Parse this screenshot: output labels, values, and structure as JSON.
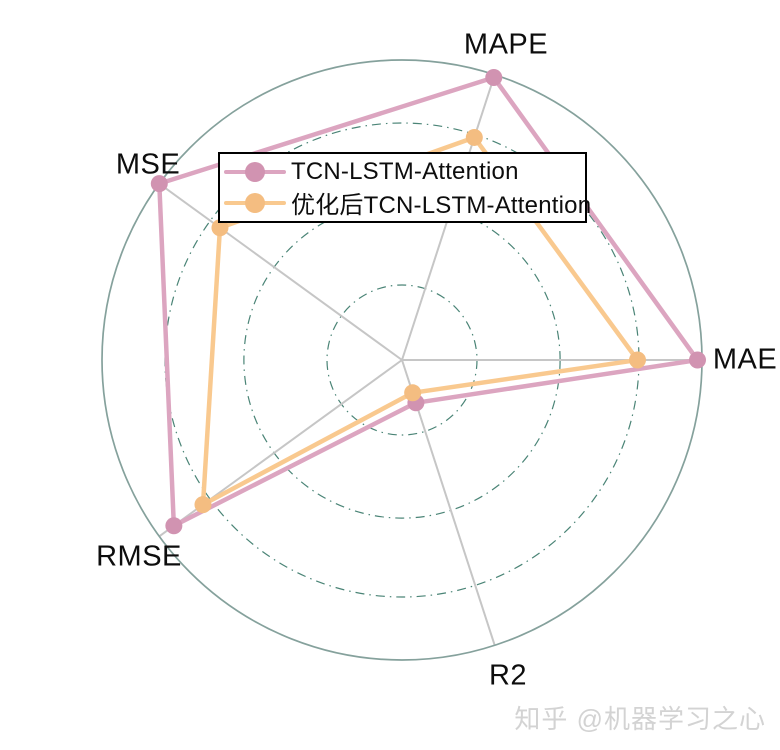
{
  "watermark": {
    "text": "知乎 @机器学习之心"
  },
  "chart_data": {
    "type": "radar",
    "title": "",
    "axes": [
      {
        "label": "MAPE",
        "angle_deg": 72
      },
      {
        "label": "MAE",
        "angle_deg": 0
      },
      {
        "label": "R2",
        "angle_deg": -72
      },
      {
        "label": "RMSE",
        "angle_deg": -144
      },
      {
        "label": "MSE",
        "angle_deg": 144
      }
    ],
    "r_max": 1.0,
    "grid": {
      "ring_fractions": [
        0.25,
        0.527,
        0.79
      ],
      "outer_ring_fraction": 1.0,
      "ring_style": "dash-dot",
      "ring_color": "#4a8476",
      "outer_ring_color": "#85a19c",
      "spoke_color": "#c6c6c6"
    },
    "legend": {
      "position": "upper-left-inside",
      "border_color": "#000000",
      "background": "#ffffff"
    },
    "series": [
      {
        "name": "TCN-LSTM-Attention",
        "line_color": "#dca5c0",
        "marker_color": "#d193b1",
        "values": [
          0.99,
          0.985,
          0.15,
          0.94,
          1.0
        ]
      },
      {
        "name": "优化后TCN-LSTM-Attention",
        "line_color": "#f9c98f",
        "marker_color": "#f4bd81",
        "values": [
          0.78,
          0.785,
          0.115,
          0.82,
          0.75
        ]
      }
    ]
  }
}
